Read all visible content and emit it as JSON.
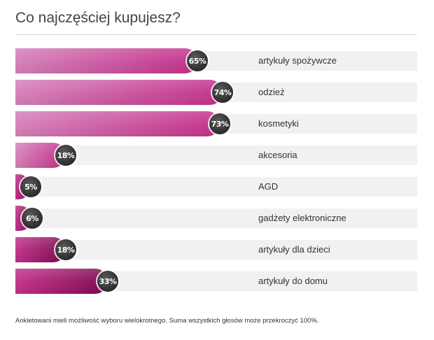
{
  "title": "Co najczęściej kupujesz?",
  "footnote": "Ankietowani mieli możliwość wyboru wielokrotnego. Suma wszystkich głosów może przekroczyć 100%.",
  "colors": {
    "bar_gradient": [
      "#d57fb8",
      "#c2308a",
      "#7e0a4f"
    ],
    "row_background": "#f1f1f1",
    "badge": "#2c2c2c"
  },
  "chart_data": {
    "type": "bar",
    "orientation": "horizontal",
    "title": "Co najczęściej kupujesz?",
    "categories": [
      "artykuły spożywcze",
      "odzież",
      "kosmetyki",
      "akcesoria",
      "AGD",
      "gadżety elektroniczne",
      "artykuły dla dzieci",
      "artykuły do domu"
    ],
    "values": [
      65,
      74,
      73,
      18,
      5,
      6,
      18,
      33
    ],
    "value_labels": [
      "65%",
      "74%",
      "73%",
      "18%",
      "5%",
      "6%",
      "18%",
      "33%"
    ],
    "xlim": [
      0,
      100
    ],
    "unit": "%",
    "legend": "none",
    "grid": false
  }
}
